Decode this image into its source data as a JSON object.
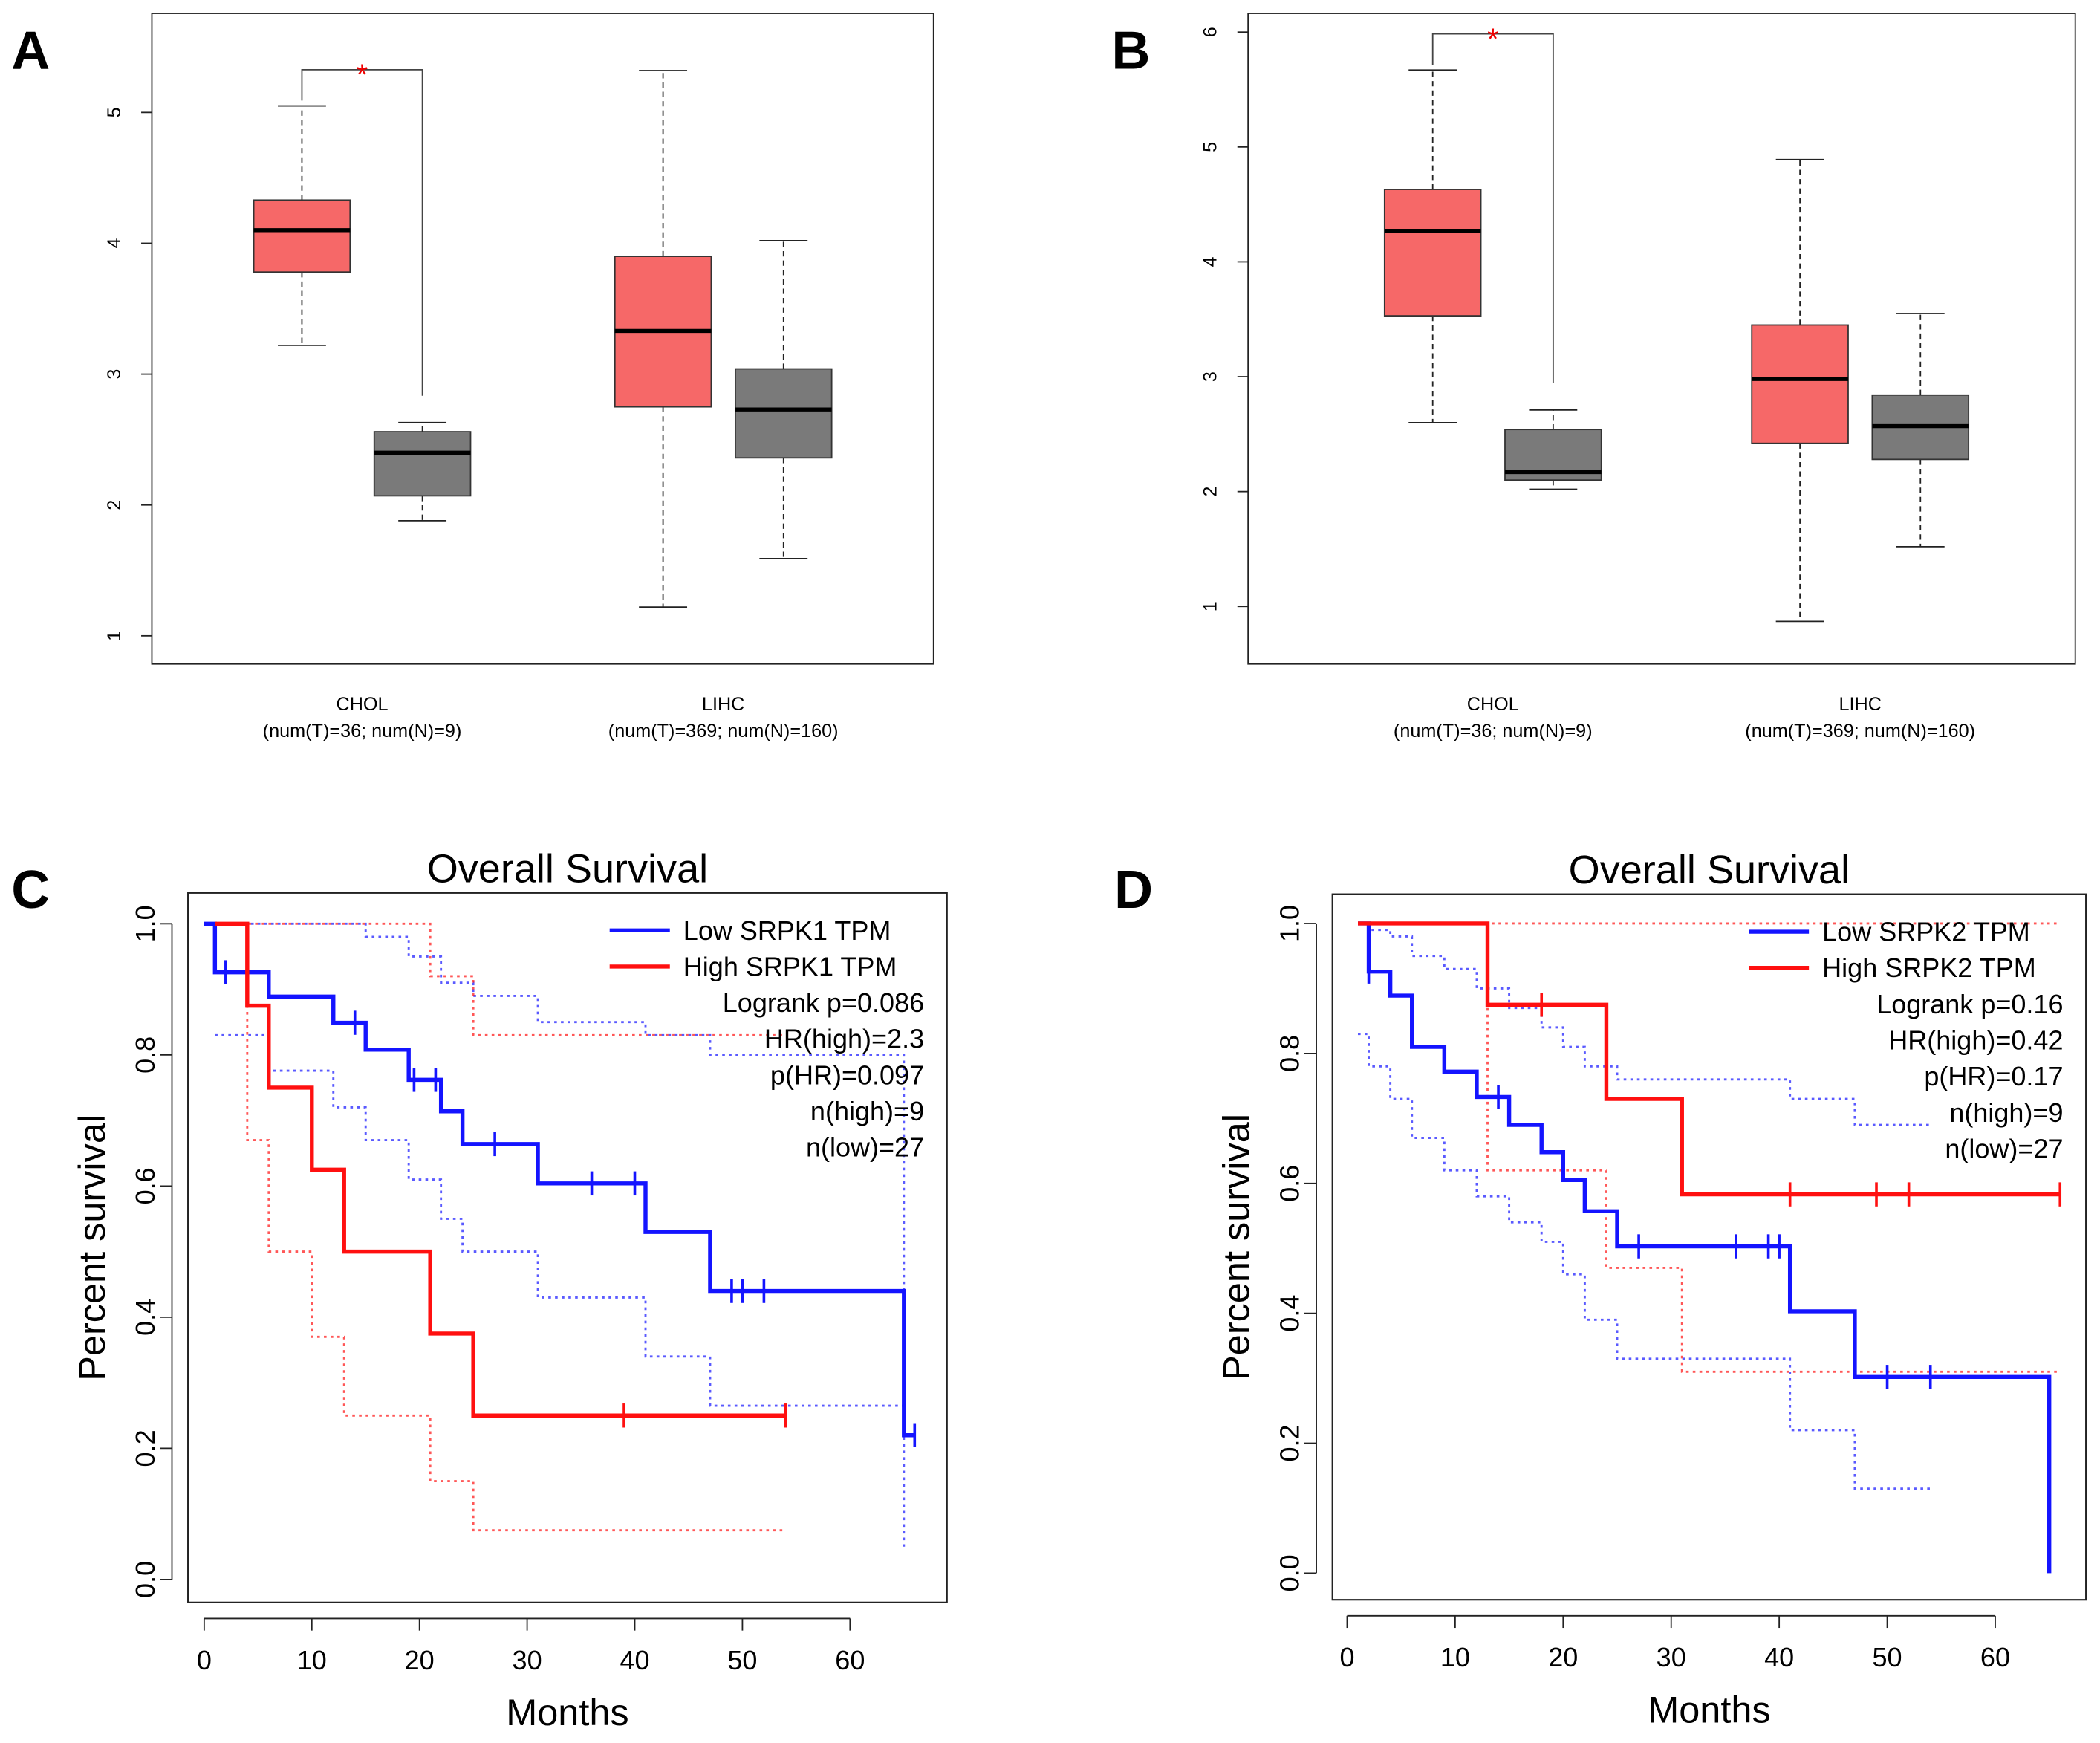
{
  "chart_data": [
    {
      "type": "box",
      "label": "A",
      "categories": [
        "CHOL",
        "LIHC"
      ],
      "category_notes": [
        "(num(T)=36; num(N)=9)",
        "(num(T)=369; num(N)=160)"
      ],
      "ylim": [
        0.785,
        5.757
      ],
      "yticks": [
        1,
        2,
        3,
        4,
        5
      ],
      "significance": "*",
      "series": [
        {
          "color": "#f66868",
          "boxes": [
            {
              "low": 3.22,
              "q1": 3.78,
              "median": 4.1,
              "q3": 4.33,
              "high": 5.05
            },
            {
              "low": 1.22,
              "q1": 2.75,
              "median": 3.33,
              "q3": 3.9,
              "high": 5.32
            }
          ]
        },
        {
          "color": "#7a7a7a",
          "boxes": [
            {
              "low": 1.88,
              "q1": 2.07,
              "median": 2.4,
              "q3": 2.56,
              "high": 2.63
            },
            {
              "low": 1.59,
              "q1": 2.36,
              "median": 2.73,
              "q3": 3.04,
              "high": 4.02
            }
          ]
        }
      ]
    },
    {
      "type": "box",
      "label": "B",
      "categories": [
        "CHOL",
        "LIHC"
      ],
      "category_notes": [
        "(num(T)=36; num(N)=9)",
        "(num(T)=369; num(N)=160)"
      ],
      "ylim": [
        0.499,
        6.163
      ],
      "yticks": [
        1,
        2,
        3,
        4,
        5,
        6
      ],
      "significance": "*",
      "series": [
        {
          "color": "#f66868",
          "boxes": [
            {
              "low": 2.6,
              "q1": 3.53,
              "median": 4.27,
              "q3": 4.63,
              "high": 5.67
            },
            {
              "low": 0.87,
              "q1": 2.42,
              "median": 2.98,
              "q3": 3.45,
              "high": 4.89
            }
          ]
        },
        {
          "color": "#7a7a7a",
          "boxes": [
            {
              "low": 2.02,
              "q1": 2.1,
              "median": 2.17,
              "q3": 2.54,
              "high": 2.71
            },
            {
              "low": 1.52,
              "q1": 2.28,
              "median": 2.57,
              "q3": 2.84,
              "high": 3.55
            }
          ]
        }
      ]
    },
    {
      "type": "survival",
      "label": "C",
      "title": "Overall Survival",
      "xlabel": "Months",
      "ylabel": "Percent survival",
      "xlim": [
        -1.5,
        69
      ],
      "xticks": [
        0,
        10,
        20,
        30,
        40,
        50,
        60
      ],
      "ylim": [
        -0.035,
        1.047
      ],
      "yticks": [
        {
          "value": 0,
          "label": "0.0"
        },
        0.2,
        0.4,
        0.6,
        0.8,
        {
          "value": 1,
          "label": "1.0"
        }
      ],
      "stats": [
        "Logrank p=0.086",
        "HR(high)=2.3",
        "p(HR)=0.097",
        "n(high)=9",
        "n(low)=27"
      ],
      "series": [
        {
          "name": "Low SRPK1 TPM",
          "color": "#1414ff",
          "x": [
            0,
            1,
            6,
            12,
            15,
            19,
            22,
            24,
            31,
            41,
            47,
            65,
            66
          ],
          "y": [
            1,
            0.926,
            0.889,
            0.849,
            0.808,
            0.762,
            0.714,
            0.664,
            0.604,
            0.53,
            0.44,
            0.22,
            0.22
          ],
          "censored": [
            2,
            14,
            19.5,
            21.5,
            27,
            36,
            40,
            49,
            50,
            52,
            66
          ],
          "upper": {
            "x": [
              0,
              15,
              19,
              22,
              25,
              31,
              41,
              47,
              65
            ],
            "y": [
              1,
              0.98,
              0.95,
              0.91,
              0.89,
              0.85,
              0.83,
              0.8,
              0.25
            ]
          },
          "lower": {
            "x": [
              1,
              6,
              12,
              15,
              19,
              22,
              24,
              31,
              41,
              47,
              65
            ],
            "y": [
              0.83,
              0.776,
              0.72,
              0.67,
              0.61,
              0.55,
              0.5,
              0.43,
              0.34,
              0.265,
              0.05
            ]
          }
        },
        {
          "name": "High SRPK1 TPM",
          "color": "#ff1010",
          "x": [
            1,
            4,
            6,
            10,
            13,
            21,
            25,
            54
          ],
          "y": [
            1,
            0.875,
            0.75,
            0.625,
            0.5,
            0.375,
            0.25,
            0.25
          ],
          "censored": [
            39,
            54
          ],
          "upper": {
            "x": [
              1,
              21,
              25,
              54
            ],
            "y": [
              1,
              0.92,
              0.83,
              0.83
            ]
          },
          "lower": {
            "x": [
              1,
              4,
              6,
              10,
              13,
              21,
              25,
              54
            ],
            "y": [
              1,
              0.67,
              0.5,
              0.37,
              0.25,
              0.15,
              0.075,
              0.075
            ]
          }
        }
      ]
    },
    {
      "type": "survival",
      "label": "D",
      "title": "Overall Survival",
      "xlabel": "Months",
      "ylabel": "Percent survival",
      "xlim": [
        -1.36,
        68.4
      ],
      "xticks": [
        0,
        10,
        20,
        30,
        40,
        50,
        60
      ],
      "ylim": [
        -0.041,
        1.045
      ],
      "yticks": [
        {
          "value": 0,
          "label": "0.0"
        },
        0.2,
        0.4,
        0.6,
        0.8,
        {
          "value": 1,
          "label": "1.0"
        }
      ],
      "stats": [
        "Logrank p=0.16",
        "HR(high)=0.42",
        "p(HR)=0.17",
        "n(high)=9",
        "n(low)=27"
      ],
      "series": [
        {
          "name": "Low SRPK2 TPM",
          "color": "#1414ff",
          "x": [
            1,
            2,
            4,
            6,
            9,
            12,
            15,
            18,
            20,
            22,
            25,
            41,
            47,
            65
          ],
          "y": [
            1,
            0.926,
            0.889,
            0.81,
            0.772,
            0.733,
            0.69,
            0.648,
            0.605,
            0.557,
            0.503,
            0.403,
            0.302,
            0
          ],
          "censored": [
            2,
            14,
            27,
            36,
            39,
            40,
            50,
            54
          ],
          "upper": {
            "x": [
              1,
              2,
              4,
              6,
              9,
              12,
              15,
              18,
              20,
              22,
              25,
              41,
              47,
              54
            ],
            "y": [
              1,
              0.99,
              0.98,
              0.95,
              0.93,
              0.9,
              0.87,
              0.84,
              0.81,
              0.78,
              0.76,
              0.73,
              0.69,
              0.69
            ]
          },
          "lower": {
            "x": [
              1,
              2,
              4,
              6,
              9,
              12,
              15,
              18,
              20,
              22,
              25,
              41,
              47,
              54
            ],
            "y": [
              0.83,
              0.78,
              0.73,
              0.67,
              0.62,
              0.58,
              0.54,
              0.51,
              0.46,
              0.39,
              0.33,
              0.22,
              0.13,
              0.13
            ]
          }
        },
        {
          "name": "High SRPK2 TPM",
          "color": "#ff1010",
          "x": [
            1,
            13,
            24,
            31,
            66
          ],
          "y": [
            1,
            0.875,
            0.73,
            0.583,
            0.583
          ],
          "censored": [
            18,
            41,
            49,
            52,
            66
          ],
          "upper": {
            "x": [
              1,
              66
            ],
            "y": [
              1,
              1
            ]
          },
          "lower": {
            "x": [
              1,
              13,
              24,
              31,
              66
            ],
            "y": [
              1,
              0.62,
              0.47,
              0.31,
              0.31
            ]
          }
        }
      ]
    }
  ]
}
